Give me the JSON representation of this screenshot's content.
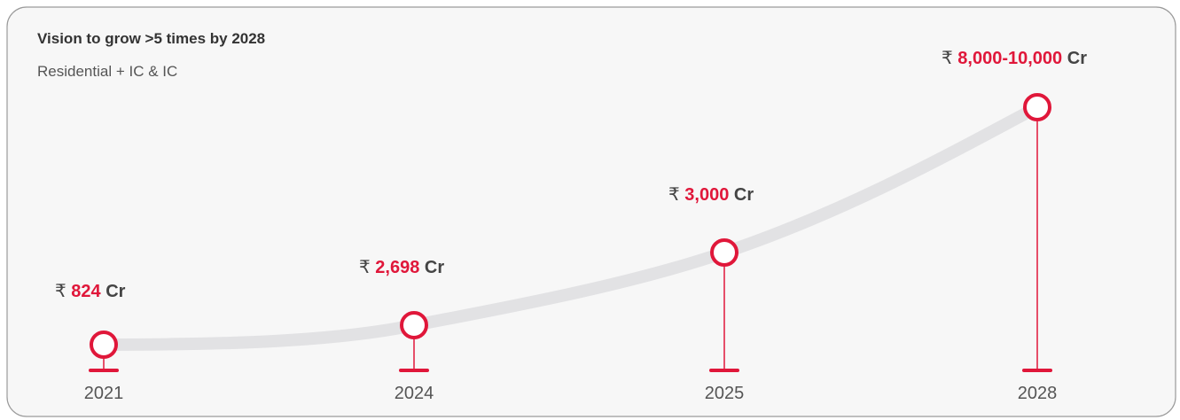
{
  "header": {
    "title": "Vision to grow >5 times by 2028",
    "subtitle": "Residential + IC & IC"
  },
  "milestones": [
    {
      "year": "2021",
      "currency": "₹",
      "amount": "824",
      "unit": "Cr"
    },
    {
      "year": "2024",
      "currency": "₹",
      "amount": "2,698",
      "unit": "Cr"
    },
    {
      "year": "2025",
      "currency": "₹",
      "amount": "3,000",
      "unit": "Cr"
    },
    {
      "year": "2028",
      "currency": "₹",
      "amount": "8,000-10,000",
      "unit": "Cr"
    }
  ]
}
